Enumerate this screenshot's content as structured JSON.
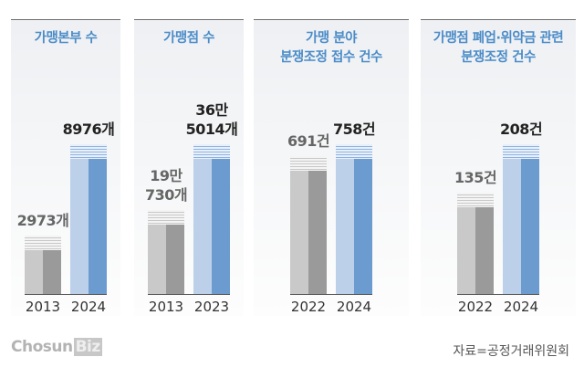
{
  "chart_data": [
    {
      "type": "bar",
      "title": "가맹본부 수",
      "categories": [
        "2013",
        "2024"
      ],
      "values": [
        2973,
        8976
      ],
      "value_labels": [
        "2973개",
        "8976개"
      ],
      "colors": [
        "#9a9a9a",
        "#6c9bd0"
      ]
    },
    {
      "type": "bar",
      "title": "가맹점 수",
      "categories": [
        "2013",
        "2023"
      ],
      "values": [
        190730,
        365014
      ],
      "value_labels": [
        "19만\n730개",
        "36만\n5014개"
      ],
      "colors": [
        "#9a9a9a",
        "#6c9bd0"
      ]
    },
    {
      "type": "bar",
      "title": "가맹 분야\n분쟁조정 접수 건수",
      "categories": [
        "2022",
        "2024"
      ],
      "values": [
        691,
        758
      ],
      "value_labels": [
        "691건",
        "758건"
      ],
      "colors": [
        "#9a9a9a",
        "#6c9bd0"
      ]
    },
    {
      "type": "bar",
      "title": "가맹점 폐업·위약금 관련\n분쟁조정 건수",
      "categories": [
        "2022",
        "2024"
      ],
      "values": [
        135,
        208
      ],
      "value_labels": [
        "135건",
        "208건"
      ],
      "colors": [
        "#9a9a9a",
        "#6c9bd0"
      ]
    }
  ],
  "logo": {
    "text": "Chosun",
    "highlight": "Biz"
  },
  "source": "자료=공정거래위원회"
}
